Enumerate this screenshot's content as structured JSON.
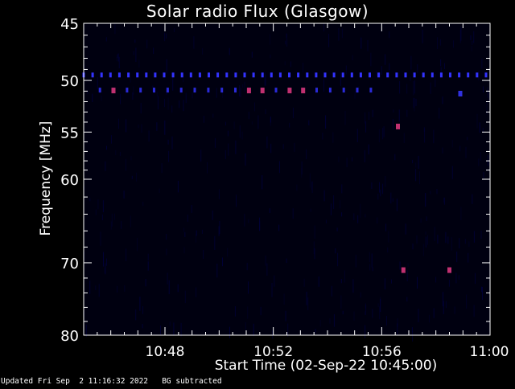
{
  "chart_data": {
    "type": "heatmap",
    "title": "Solar radio Flux (Glasgow)",
    "xlabel": "Start Time (02-Sep-22 10:45:00)",
    "ylabel": "Frequency [MHz]",
    "x_range_minutes": [
      0,
      15
    ],
    "x_ticks": [
      {
        "minute": 3,
        "label": "10:48"
      },
      {
        "minute": 7,
        "label": "10:52"
      },
      {
        "minute": 11,
        "label": "10:56"
      },
      {
        "minute": 15,
        "label": "11:00"
      }
    ],
    "y_range_mhz": [
      45,
      80
    ],
    "y_scale": "log",
    "y_ticks": [
      45,
      50,
      55,
      60,
      70,
      80
    ],
    "y_minor_ticks": [
      46,
      47,
      48,
      49,
      51,
      52,
      53,
      54,
      56,
      57,
      58,
      59,
      62,
      64,
      66,
      68,
      72,
      74,
      76,
      78
    ],
    "background": "#000010",
    "features": [
      {
        "kind": "band",
        "freq_mhz": 49.5,
        "color": "#3333ff",
        "x_start_min": 0,
        "x_end_min": 15,
        "step_min": 0.33
      },
      {
        "kind": "band",
        "freq_mhz": 50.9,
        "color": "#2a2ad8",
        "x_start_min": 0.6,
        "x_end_min": 10.8,
        "step_min": 0.5
      },
      {
        "kind": "spot",
        "minute": 1.1,
        "freq_mhz": 50.9,
        "color": "#c03070"
      },
      {
        "kind": "spot",
        "minute": 6.1,
        "freq_mhz": 50.9,
        "color": "#c03070"
      },
      {
        "kind": "spot",
        "minute": 6.6,
        "freq_mhz": 50.9,
        "color": "#c03070"
      },
      {
        "kind": "spot",
        "minute": 7.6,
        "freq_mhz": 50.9,
        "color": "#c03070"
      },
      {
        "kind": "spot",
        "minute": 8.1,
        "freq_mhz": 50.9,
        "color": "#c03070"
      },
      {
        "kind": "spot",
        "minute": 11.6,
        "freq_mhz": 54.4,
        "color": "#c03070"
      },
      {
        "kind": "spot",
        "minute": 11.8,
        "freq_mhz": 70.9,
        "color": "#c03070"
      },
      {
        "kind": "spot",
        "minute": 13.5,
        "freq_mhz": 70.9,
        "color": "#c03070"
      },
      {
        "kind": "spot",
        "minute": 13.9,
        "freq_mhz": 51.2,
        "color": "#3030e0"
      }
    ],
    "colors": {
      "axis": "#ffffff",
      "noise": "#000040"
    }
  },
  "footer": {
    "updated": "Updated Fri Sep  2 11:16:32 2022",
    "bg_note": "BG subtracted"
  }
}
